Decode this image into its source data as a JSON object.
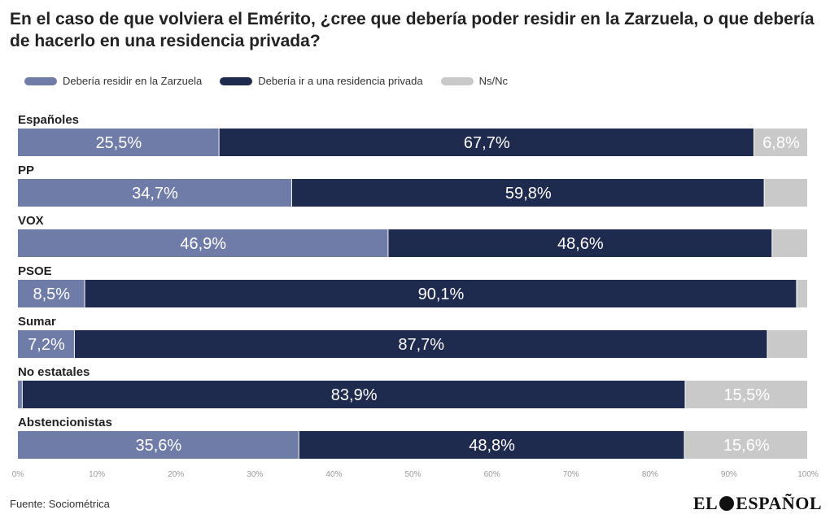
{
  "title": "En el caso de que volviera el Emérito, ¿cree que debería poder residir en la Zarzuela, o que debería de hacerlo en una residencia privada?",
  "source": "Fuente: Sociométrica",
  "logo": {
    "left": "EL",
    "right": "ESPAÑOL"
  },
  "colors": {
    "zarzuela": "#6f7ca8",
    "privada": "#1f2b4e",
    "nsnc": "#c9c9c9"
  },
  "chart_data": {
    "type": "bar",
    "orientation": "horizontal",
    "stacked": true,
    "categories": [
      "Españoles",
      "PP",
      "VOX",
      "PSOE",
      "Sumar",
      "No estatales",
      "Abstencionistas"
    ],
    "series": [
      {
        "name": "Debería residir en la Zarzuela",
        "values": [
          25.5,
          34.7,
          46.9,
          8.5,
          7.2,
          0.6,
          35.6
        ],
        "labels": [
          "25,5%",
          "34,7%",
          "46,9%",
          "8,5%",
          "7,2%",
          "",
          "35,6%"
        ]
      },
      {
        "name": "Debería ir a una residencia privada",
        "values": [
          67.7,
          59.8,
          48.6,
          90.1,
          87.7,
          83.9,
          48.8
        ],
        "labels": [
          "67,7%",
          "59,8%",
          "48,6%",
          "90,1%",
          "87,7%",
          "83,9%",
          "48,8%"
        ]
      },
      {
        "name": "Ns/Nc",
        "values": [
          6.8,
          5.5,
          4.5,
          1.4,
          5.1,
          15.5,
          15.6
        ],
        "labels": [
          "6,8%",
          "",
          "",
          "",
          "",
          "15,5%",
          "15,6%"
        ]
      }
    ],
    "xlim": [
      0,
      100
    ],
    "xticks": [
      "0%",
      "10%",
      "20%",
      "30%",
      "40%",
      "50%",
      "60%",
      "70%",
      "80%",
      "90%",
      "100%"
    ],
    "legend": "top-left",
    "grid": false
  }
}
